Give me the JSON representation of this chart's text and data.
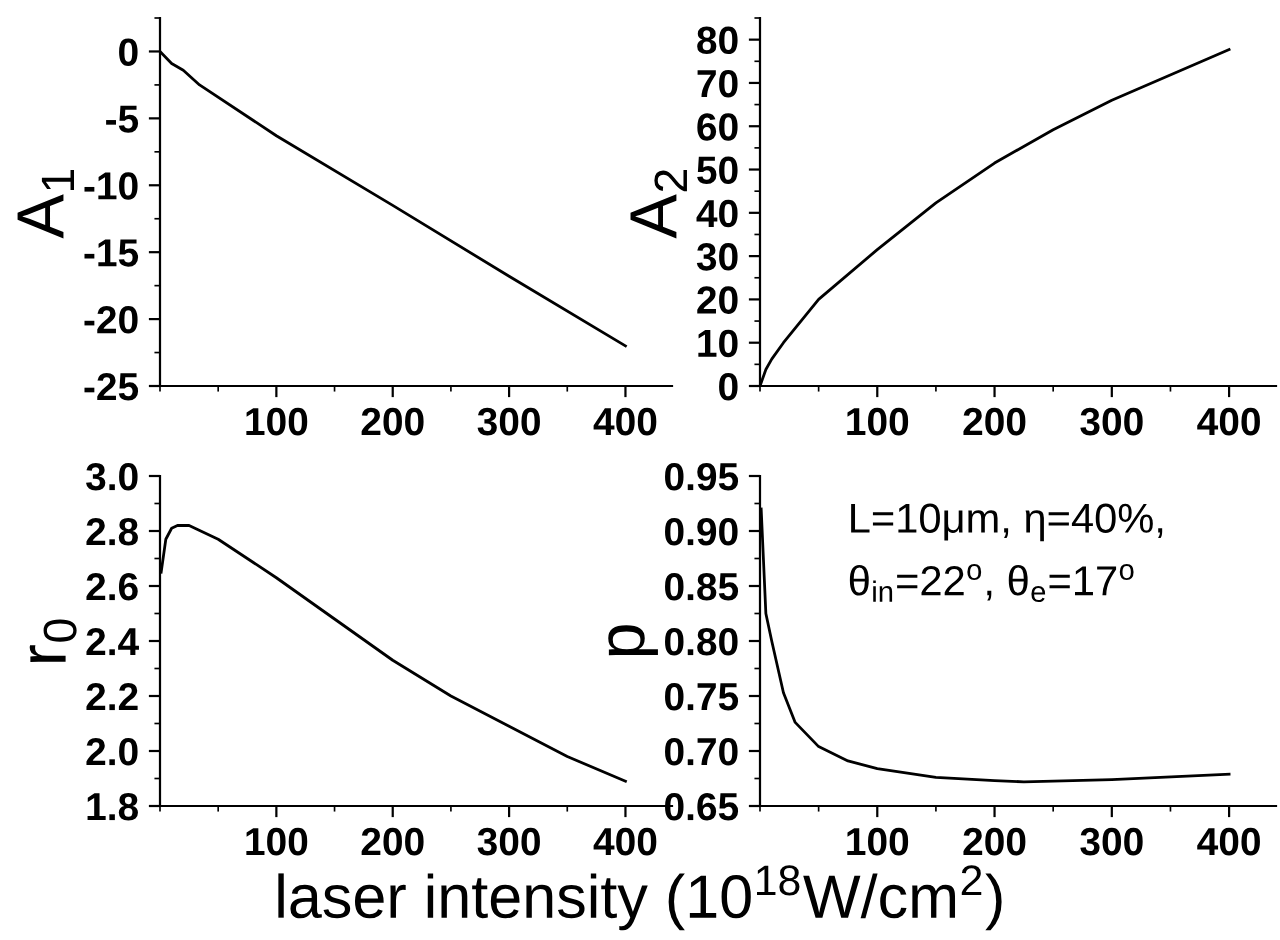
{
  "chart_data": [
    {
      "type": "line",
      "ylabel": "A$_{1}$",
      "x": [
        0,
        10,
        20,
        34,
        100,
        200,
        300,
        400
      ],
      "series": [
        {
          "color": "#000000",
          "values": [
            0,
            -0.9,
            -1.4,
            -2.5,
            -6.3,
            -11.5,
            -16.8,
            -22
          ]
        }
      ],
      "xlim": [
        0,
        440
      ],
      "xticks": [
        100,
        200,
        300,
        400
      ],
      "ylim": [
        -25,
        2.5
      ],
      "yticks": [
        -25,
        -20,
        -15,
        -10,
        -5,
        0
      ],
      "grid": false,
      "legend": false,
      "marker": "none",
      "line_style": "solid"
    },
    {
      "type": "line",
      "ylabel": "A$_{2}$",
      "x": [
        0,
        5,
        10,
        20,
        50,
        100,
        150,
        200,
        250,
        300,
        400
      ],
      "series": [
        {
          "color": "#000000",
          "values": [
            0,
            3.8,
            6.2,
            10,
            20,
            31.5,
            42.3,
            51.5,
            59.2,
            66,
            77.7
          ]
        }
      ],
      "xlim": [
        0,
        440
      ],
      "xticks": [
        100,
        200,
        300,
        400
      ],
      "ylim": [
        0,
        85
      ],
      "yticks": [
        0,
        10,
        20,
        30,
        40,
        50,
        60,
        70,
        80
      ],
      "grid": false,
      "legend": false,
      "marker": "none",
      "line_style": "solid"
    },
    {
      "type": "line",
      "ylabel": "r$_{0}$",
      "xlabel": "laser intensity (10$^{18}$W/cm$^{2}$)",
      "x": [
        1,
        5,
        10,
        15,
        25,
        50,
        100,
        150,
        200,
        250,
        300,
        350,
        400
      ],
      "series": [
        {
          "color": "#000000",
          "values": [
            2.65,
            2.77,
            2.81,
            2.82,
            2.82,
            2.77,
            2.63,
            2.48,
            2.33,
            2.2,
            2.09,
            1.98,
            1.89
          ]
        }
      ],
      "xlim": [
        0,
        440
      ],
      "xticks": [
        100,
        200,
        300,
        400
      ],
      "ylim": [
        1.8,
        3.0
      ],
      "yticks": [
        1.8,
        {
          "value": 2.0,
          "label": "2.0"
        },
        2.2,
        2.4,
        2.6,
        2.8,
        {
          "value": 3.0,
          "label": "3.0"
        }
      ],
      "grid": false,
      "legend": false,
      "marker": "none",
      "line_style": "solid"
    },
    {
      "type": "line",
      "ylabel": "p",
      "annotations": [
        "L=10μm, η=40%,",
        "θ$_{in}$=22$^{o}$, θ$_{e}$=17$^{o}$"
      ],
      "x": [
        1,
        5,
        10,
        20,
        30,
        50,
        75,
        100,
        150,
        200,
        225,
        300,
        400
      ],
      "series": [
        {
          "color": "#000000",
          "values": [
            0.92,
            0.825,
            0.8,
            0.753,
            0.726,
            0.704,
            0.691,
            0.684,
            0.676,
            0.673,
            0.672,
            0.674,
            0.679
          ]
        }
      ],
      "xlim": [
        0,
        440
      ],
      "xticks": [
        100,
        200,
        300,
        400
      ],
      "ylim": [
        0.65,
        0.95
      ],
      "yticks": [
        0.65,
        {
          "value": 0.7,
          "label": "0.70"
        },
        0.75,
        {
          "value": 0.8,
          "label": "0.80"
        },
        0.85,
        {
          "value": 0.9,
          "label": "0.90"
        },
        0.95
      ],
      "grid": false,
      "legend": false,
      "marker": "none",
      "line_style": "solid"
    }
  ]
}
